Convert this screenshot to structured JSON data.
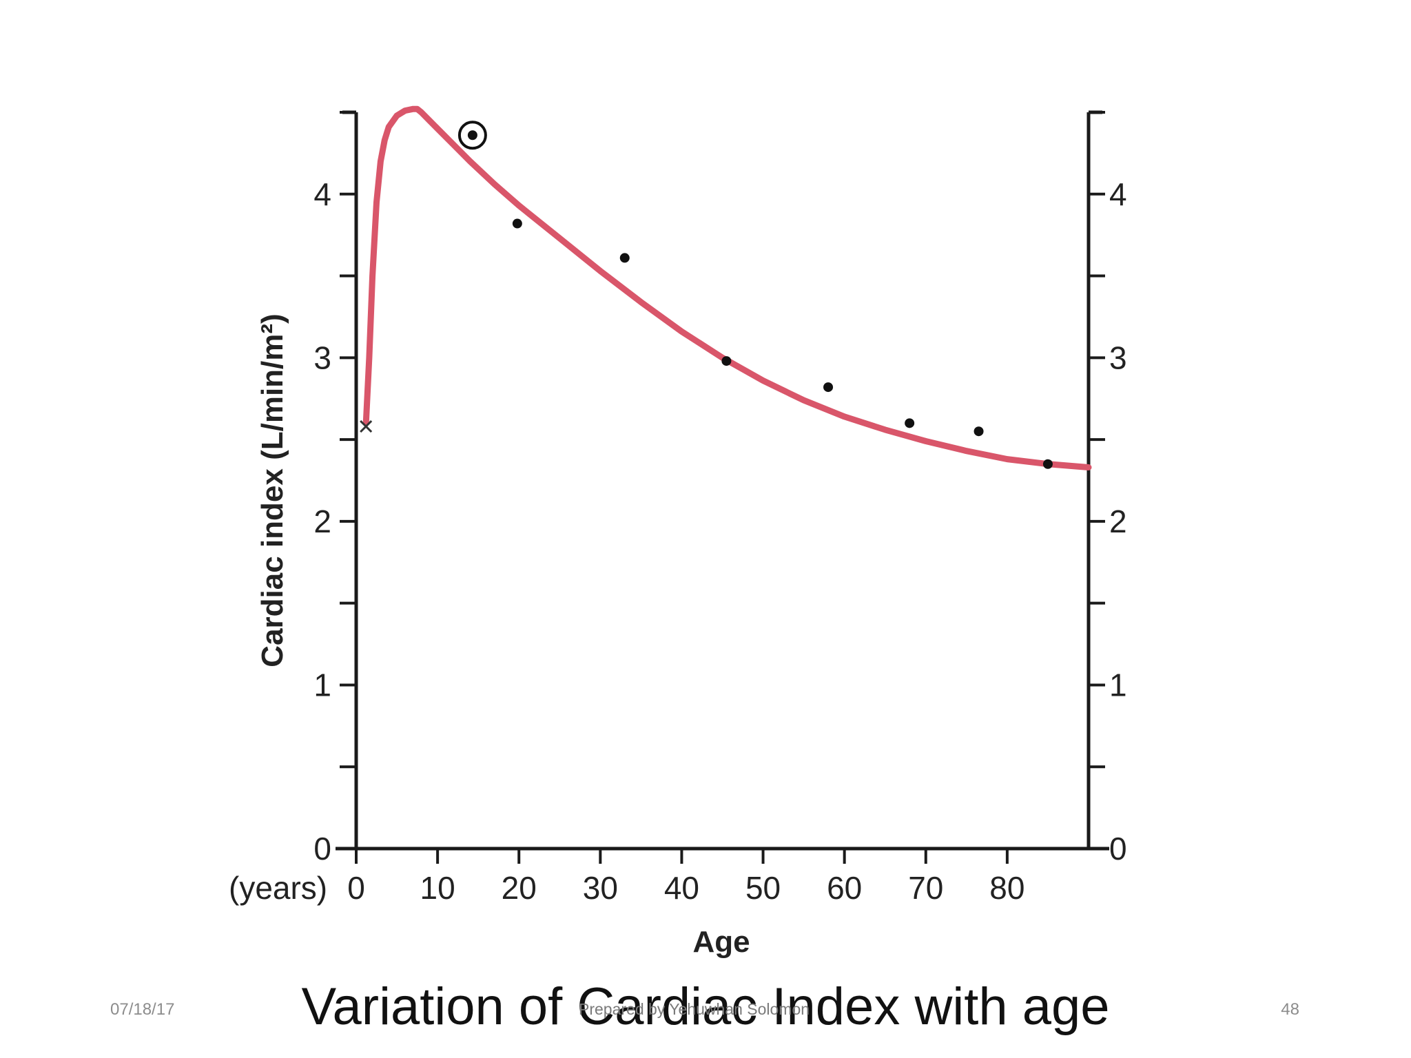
{
  "slide": {
    "title": "Variation of Cardiac Index with age",
    "date": "07/18/17",
    "author": "Prepared by Yehuwhan Solomon",
    "page_number": "48"
  },
  "colors": {
    "curve": "#d9566a",
    "axis": "#1a1a1a",
    "point": "#111111"
  },
  "chart_data": {
    "type": "scatter",
    "title": "",
    "xlabel": "Age",
    "x_unit_label": "(years)",
    "ylabel": "Cardiac index (L/min/m²)",
    "xlim": [
      0,
      90
    ],
    "ylim": [
      0,
      4.5
    ],
    "x_ticks": [
      0,
      10,
      20,
      30,
      40,
      50,
      60,
      70,
      80
    ],
    "y_ticks": [
      0,
      0.5,
      1,
      1.5,
      2,
      2.5,
      3,
      3.5,
      4,
      4.5
    ],
    "y_tick_labels": [
      "0",
      "",
      "1",
      "",
      "2",
      "",
      "3",
      "",
      "4",
      ""
    ],
    "right_axis_mirrored": true,
    "series": [
      {
        "name": "fitted-curve",
        "kind": "line",
        "x": [
          1.2,
          1.6,
          2,
          2.5,
          3,
          3.5,
          4,
          5,
          6,
          7,
          7.5,
          8,
          9,
          10,
          12,
          14,
          17,
          20,
          25,
          30,
          35,
          40,
          45,
          50,
          55,
          60,
          65,
          70,
          75,
          80,
          85,
          90
        ],
        "y": [
          2.6,
          3.0,
          3.5,
          3.95,
          4.2,
          4.33,
          4.41,
          4.48,
          4.51,
          4.52,
          4.52,
          4.5,
          4.45,
          4.4,
          4.3,
          4.2,
          4.06,
          3.93,
          3.73,
          3.53,
          3.34,
          3.16,
          3.0,
          2.86,
          2.74,
          2.64,
          2.56,
          2.49,
          2.43,
          2.38,
          2.35,
          2.33
        ]
      },
      {
        "name": "measured-points",
        "kind": "scatter",
        "x": [
          19.8,
          33,
          45.5,
          58,
          68,
          76.5,
          85
        ],
        "y": [
          3.82,
          3.61,
          2.98,
          2.82,
          2.6,
          2.55,
          2.35
        ]
      },
      {
        "name": "newborn-marker",
        "kind": "x-marker",
        "x": [
          1.2
        ],
        "y": [
          2.58
        ]
      },
      {
        "name": "circled-point",
        "kind": "circled-dot",
        "x": [
          14.3
        ],
        "y": [
          4.36
        ]
      }
    ]
  }
}
